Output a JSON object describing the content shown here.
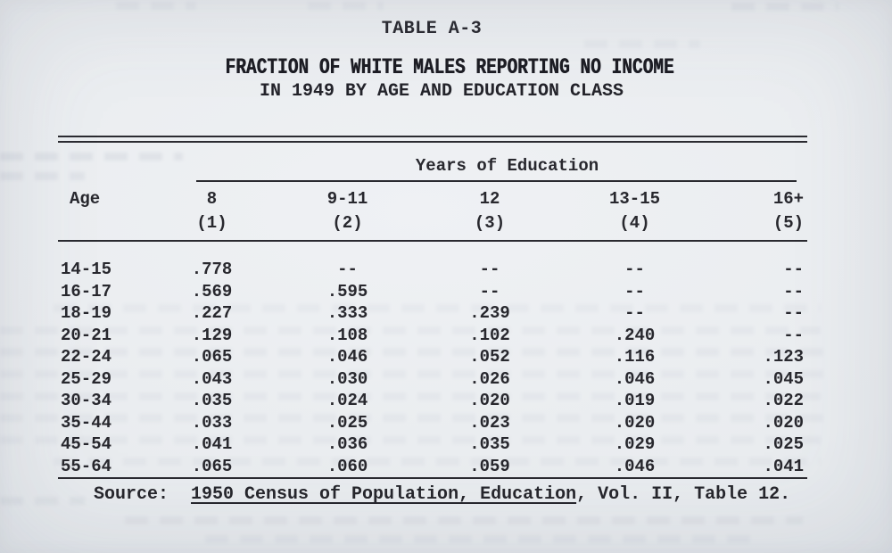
{
  "colors": {
    "paper": "#e9ecef",
    "ink": "#27272d"
  },
  "page": {
    "table_label": "TABLE A-3",
    "title_line1": "FRACTION OF WHITE MALES REPORTING NO INCOME",
    "title_line2": "IN 1949 BY AGE AND EDUCATION CLASS"
  },
  "table": {
    "group_header": "Years of Education",
    "age_header": "Age",
    "columns": [
      {
        "years": "8",
        "number": "(1)"
      },
      {
        "years": "9-11",
        "number": "(2)"
      },
      {
        "years": "12",
        "number": "(3)"
      },
      {
        "years": "13-15",
        "number": "(4)"
      },
      {
        "years": "16+",
        "number": "(5)"
      }
    ],
    "rows": [
      {
        "age": "14-15",
        "values": [
          ".778",
          "--",
          "--",
          "--",
          "--"
        ]
      },
      {
        "age": "16-17",
        "values": [
          ".569",
          ".595",
          "--",
          "--",
          "--"
        ]
      },
      {
        "age": "18-19",
        "values": [
          ".227",
          ".333",
          ".239",
          "--",
          "--"
        ]
      },
      {
        "age": "20-21",
        "values": [
          ".129",
          ".108",
          ".102",
          ".240",
          "--"
        ]
      },
      {
        "age": "22-24",
        "values": [
          ".065",
          ".046",
          ".052",
          ".116",
          ".123"
        ]
      },
      {
        "age": "25-29",
        "values": [
          ".043",
          ".030",
          ".026",
          ".046",
          ".045"
        ]
      },
      {
        "age": "30-34",
        "values": [
          ".035",
          ".024",
          ".020",
          ".019",
          ".022"
        ]
      },
      {
        "age": "35-44",
        "values": [
          ".033",
          ".025",
          ".023",
          ".020",
          ".020"
        ]
      },
      {
        "age": "45-54",
        "values": [
          ".041",
          ".036",
          ".035",
          ".029",
          ".025"
        ]
      },
      {
        "age": "55-64",
        "values": [
          ".065",
          ".060",
          ".059",
          ".046",
          ".041"
        ]
      }
    ]
  },
  "source": {
    "label": "Source:",
    "citation_underlined": "1950 Census of Population, Education",
    "citation_rest": ", Vol. II, Table 12."
  }
}
